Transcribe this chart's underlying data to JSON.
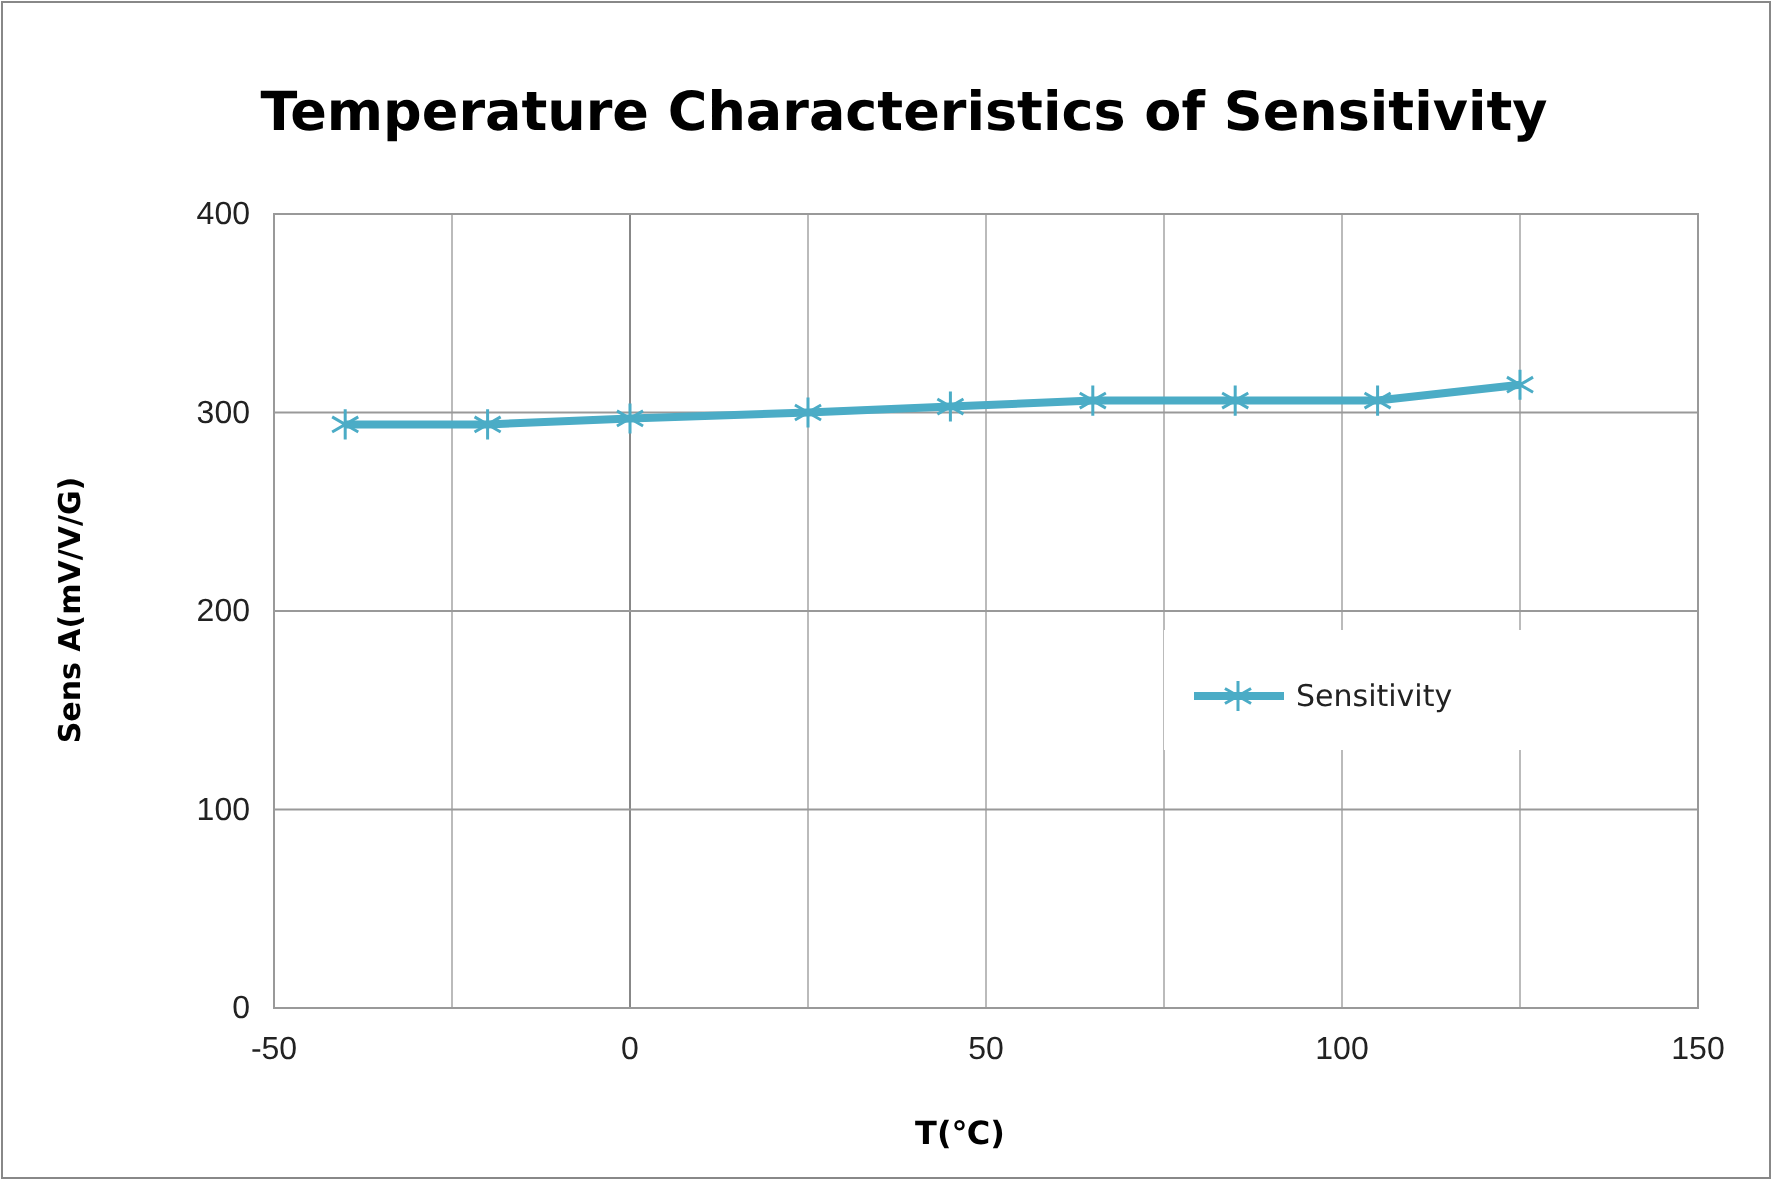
{
  "chart_data": {
    "type": "line",
    "title": "Temperature Characteristics of Sensitivity",
    "xlabel": "T(℃)",
    "ylabel": "Sens A(mV/V/G)",
    "x": [
      -40,
      -20,
      0,
      25,
      45,
      65,
      85,
      105,
      125
    ],
    "series": [
      {
        "name": "Sensitivity",
        "color": "#4bacc6",
        "values": [
          294,
          294,
          297,
          300,
          303,
          306,
          306,
          306,
          314
        ]
      }
    ],
    "xlim": [
      -50,
      150
    ],
    "xticks": [
      -50,
      {
        "value": -25,
        "label": null
      },
      0,
      {
        "value": 25,
        "label": null
      },
      50,
      {
        "value": 75,
        "label": null
      },
      100,
      {
        "value": 125,
        "label": null
      },
      150
    ],
    "ylim": [
      0,
      400
    ],
    "yticks": [
      0,
      100,
      200,
      300,
      400
    ],
    "grid": true,
    "legend": "right",
    "marker": "cross",
    "line_style": "solid"
  }
}
